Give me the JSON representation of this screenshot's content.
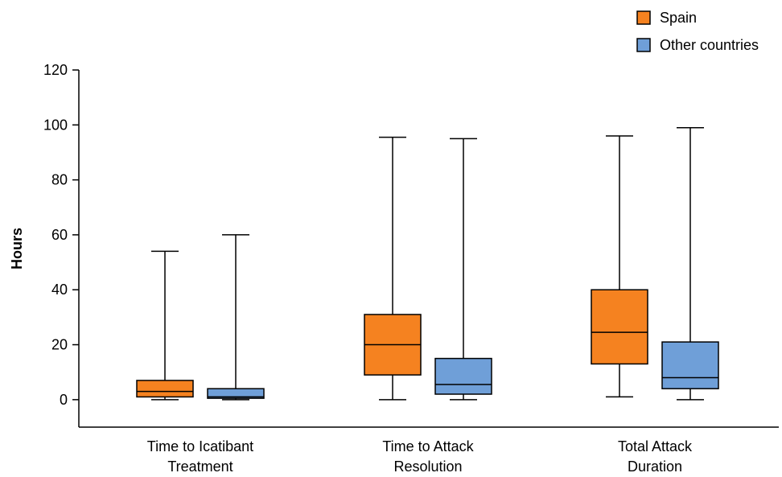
{
  "chart_data": {
    "type": "boxplot",
    "title": "",
    "xlabel": "",
    "ylabel": "Hours",
    "ylim": [
      -10,
      120
    ],
    "yticks": [
      0,
      20,
      40,
      60,
      80,
      100,
      120
    ],
    "grid": false,
    "legend_position": "top-right",
    "categories": [
      [
        "Time to Icatibant",
        "Treatment"
      ],
      [
        "Time to Attack",
        "Resolution"
      ],
      [
        "Total Attack",
        "Duration"
      ]
    ],
    "series": [
      {
        "name": "Spain",
        "color": "#f58220",
        "boxes": [
          {
            "min": 0,
            "q1": 1,
            "median": 3,
            "q3": 7,
            "max": 54
          },
          {
            "min": 0,
            "q1": 9,
            "median": 20,
            "q3": 31,
            "max": 95.5
          },
          {
            "min": 1,
            "q1": 13,
            "median": 24.5,
            "q3": 40,
            "max": 96
          }
        ]
      },
      {
        "name": "Other countries",
        "color": "#6f9fd8",
        "boxes": [
          {
            "min": 0,
            "q1": 0.5,
            "median": 1,
            "q3": 4,
            "max": 60
          },
          {
            "min": 0,
            "q1": 2,
            "median": 5.5,
            "q3": 15,
            "max": 95
          },
          {
            "min": 0,
            "q1": 4,
            "median": 8,
            "q3": 21,
            "max": 99
          }
        ]
      }
    ]
  }
}
